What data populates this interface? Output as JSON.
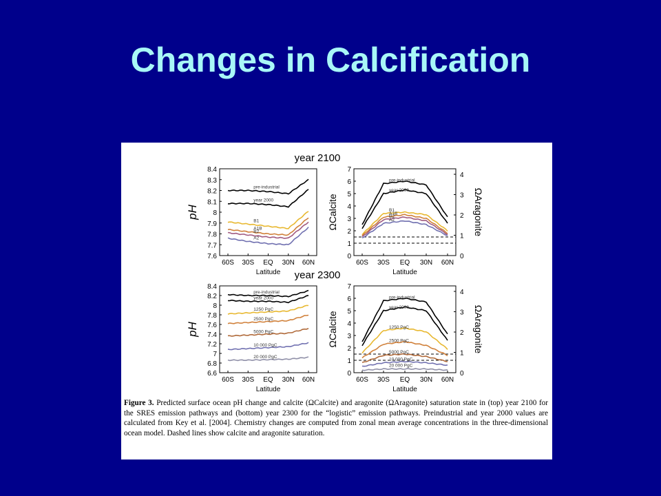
{
  "slide": {
    "title": "Changes in Calcification"
  },
  "figure": {
    "panel_titles": [
      "year 2100",
      "year 2300"
    ],
    "caption": {
      "label": "Figure 3.",
      "text": "Predicted surface ocean pH change and calcite (ΩCalcite) and aragonite (ΩAragonite) saturation state in (top) year 2100 for the SRES emission pathways and (bottom) year 2300 for the “logistic” emission pathways. Preindustrial and year 2000 values are calculated from Key et al. [2004]. Chemistry changes are computed from zonal mean average concentrations in the three-dimensional ocean model. Dashed lines show calcite and aragonite saturation."
    }
  },
  "chart_data": [
    {
      "type": "line",
      "title": "year 2100",
      "xlabel": "Latitude",
      "ylabel": "pH",
      "x": [
        "60S",
        "30S",
        "EQ",
        "30N",
        "60N"
      ],
      "yticks": [
        "8.4",
        "8.3",
        "8.2",
        "8.1",
        "8",
        "7.9",
        "7.8",
        "7.7",
        "7.6"
      ],
      "ylim": [
        7.6,
        8.4
      ],
      "series": [
        {
          "name": "pre-industrial",
          "color": "#000000",
          "values": [
            8.2,
            8.2,
            8.19,
            8.17,
            8.3
          ]
        },
        {
          "name": "year 2000",
          "color": "#000000",
          "values": [
            8.08,
            8.08,
            8.07,
            8.05,
            8.21
          ]
        },
        {
          "name": "B1",
          "color": "#e8b830",
          "values": [
            7.91,
            7.89,
            7.87,
            7.85,
            8.01
          ]
        },
        {
          "name": "A1B",
          "color": "#d0803a",
          "values": [
            7.84,
            7.82,
            7.8,
            7.79,
            7.95
          ]
        },
        {
          "name": "B2",
          "color": "#a05a80",
          "values": [
            7.81,
            7.79,
            7.77,
            7.76,
            7.91
          ]
        },
        {
          "name": "A2",
          "color": "#7070b0",
          "values": [
            7.76,
            7.73,
            7.71,
            7.7,
            7.86
          ]
        }
      ]
    },
    {
      "type": "line",
      "title": "year 2100",
      "xlabel": "Latitude",
      "ylabel": "ΩCalcite",
      "y2label": "ΩAragonite",
      "x": [
        "60S",
        "30S",
        "EQ",
        "30N",
        "60N"
      ],
      "yticks": [
        "7",
        "6",
        "5",
        "4",
        "3",
        "2",
        "1",
        "0"
      ],
      "y2ticks": [
        "4",
        "3",
        "2",
        "1",
        "0"
      ],
      "ylim": [
        0,
        7
      ],
      "series": [
        {
          "name": "pre-industrial",
          "color": "#000000",
          "values": [
            2.5,
            5.8,
            6.0,
            5.7,
            3.1
          ]
        },
        {
          "name": "year 2000",
          "color": "#000000",
          "values": [
            2.2,
            5.0,
            5.3,
            5.0,
            2.6
          ]
        },
        {
          "name": "B1",
          "color": "#e8b830",
          "values": [
            1.7,
            3.4,
            3.5,
            3.3,
            2.0
          ]
        },
        {
          "name": "A1B",
          "color": "#d0803a",
          "values": [
            1.6,
            3.1,
            3.3,
            3.0,
            1.8
          ]
        },
        {
          "name": "B2",
          "color": "#a05a80",
          "values": [
            1.5,
            2.9,
            3.1,
            2.8,
            1.7
          ]
        },
        {
          "name": "A2",
          "color": "#7070b0",
          "values": [
            1.4,
            2.6,
            2.8,
            2.5,
            1.6
          ]
        }
      ],
      "reference_lines": [
        1.0,
        1.5
      ]
    },
    {
      "type": "line",
      "title": "year 2300",
      "xlabel": "Latitude",
      "ylabel": "pH",
      "x": [
        "60S",
        "30S",
        "EQ",
        "30N",
        "60N"
      ],
      "yticks": [
        "8.4",
        "8.2",
        "8",
        "7.8",
        "7.6",
        "7.4",
        "7.2",
        "7",
        "6.8",
        "6.6"
      ],
      "ylim": [
        6.6,
        8.4
      ],
      "series": [
        {
          "name": "pre-industrial",
          "color": "#000000",
          "values": [
            8.22,
            8.2,
            8.2,
            8.18,
            8.3
          ]
        },
        {
          "name": "year 2000",
          "color": "#000000",
          "values": [
            8.1,
            8.08,
            8.08,
            8.06,
            8.2
          ]
        },
        {
          "name": "1250 PgC",
          "color": "#e8b830",
          "values": [
            7.82,
            7.84,
            7.86,
            7.88,
            8.0
          ]
        },
        {
          "name": "2500 PgC",
          "color": "#d0803a",
          "values": [
            7.62,
            7.64,
            7.66,
            7.68,
            7.8
          ]
        },
        {
          "name": "5000 PgC",
          "color": "#b06a3a",
          "values": [
            7.36,
            7.38,
            7.4,
            7.42,
            7.52
          ]
        },
        {
          "name": "10 000 PgC",
          "color": "#7070b0",
          "values": [
            7.08,
            7.1,
            7.12,
            7.14,
            7.22
          ]
        },
        {
          "name": "20 000 PgC",
          "color": "#9090a8",
          "values": [
            6.86,
            6.86,
            6.87,
            6.88,
            6.92
          ]
        }
      ]
    },
    {
      "type": "line",
      "title": "year 2300",
      "xlabel": "Latitude",
      "ylabel": "ΩCalcite",
      "y2label": "ΩAragonite",
      "x": [
        "60S",
        "30S",
        "EQ",
        "30N",
        "60N"
      ],
      "yticks": [
        "7",
        "6",
        "5",
        "4",
        "3",
        "2",
        "1",
        "0"
      ],
      "y2ticks": [
        "4",
        "3",
        "2",
        "1",
        "0"
      ],
      "ylim": [
        0,
        7
      ],
      "series": [
        {
          "name": "pre-industrial",
          "color": "#000000",
          "values": [
            2.5,
            5.8,
            6.0,
            5.7,
            3.1
          ]
        },
        {
          "name": "year 2000",
          "color": "#000000",
          "values": [
            2.2,
            5.0,
            5.3,
            5.0,
            2.6
          ]
        },
        {
          "name": "1250 PgC",
          "color": "#e8b830",
          "values": [
            1.6,
            3.4,
            3.6,
            3.3,
            1.9
          ]
        },
        {
          "name": "2500 PgC",
          "color": "#d0803a",
          "values": [
            1.2,
            2.3,
            2.5,
            2.2,
            1.4
          ]
        },
        {
          "name": "5000 PgC",
          "color": "#b06a3a",
          "values": [
            0.8,
            1.4,
            1.5,
            1.3,
            0.9
          ]
        },
        {
          "name": "10 000 PgC",
          "color": "#7070b0",
          "values": [
            0.5,
            0.8,
            0.9,
            0.8,
            0.6
          ]
        },
        {
          "name": "20 000 PgC",
          "color": "#9090a8",
          "values": [
            0.2,
            0.3,
            0.3,
            0.3,
            0.2
          ]
        }
      ],
      "reference_lines": [
        1.0,
        1.5
      ]
    }
  ]
}
